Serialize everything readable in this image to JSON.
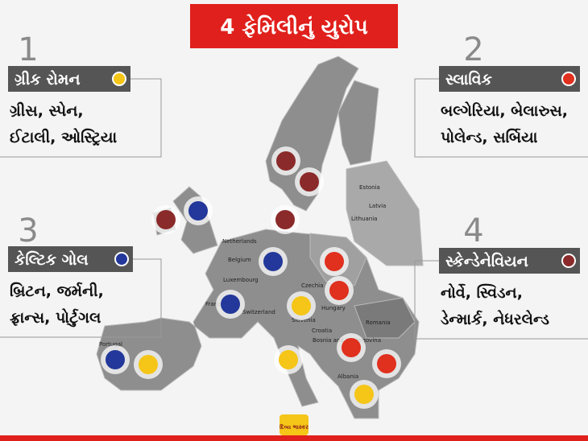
{
  "title": "4 ફેમિલીનું યુરોપ",
  "panels": [
    {
      "number": "1",
      "name": "ગ્રીક રોમન",
      "color": "#f5c518",
      "lines": [
        "ગ્રીસ, સ્પેન,",
        "ઈટાલી, ઓસ્ટ્રિયા"
      ]
    },
    {
      "number": "2",
      "name": "સ્લાવિક",
      "color": "#e0301e",
      "lines": [
        "બલ્ગેરિયા, બેલારુસ,",
        "પોલેન્ડ, સર્બિયા"
      ]
    },
    {
      "number": "3",
      "name": "કેલ્ટિક ગોલ",
      "color": "#23389a",
      "lines": [
        "બ્રિટન, જર્મની,",
        "ફ્રાન્સ, પોર્ટુગલ"
      ]
    },
    {
      "number": "4",
      "name": "સ્કેન્ડેનેવિયન",
      "color": "#8b2a2a",
      "lines": [
        "નોર્વે, સ્વિડન,",
        "ડેન્માર્ક, નેધરલેન્ડ"
      ]
    }
  ],
  "map_labels": [
    "Estonia",
    "Latvia",
    "Lithuania",
    "Netherlands",
    "Belgium",
    "Luxembourg",
    "Czechia",
    "Hungary",
    "Romania",
    "Slovenia",
    "Croatia",
    "Bosnia and Herzegovina",
    "Albania",
    "Portugal",
    "Switzerland",
    "France"
  ],
  "logo": "દિવ્ય ભાસ્કર"
}
